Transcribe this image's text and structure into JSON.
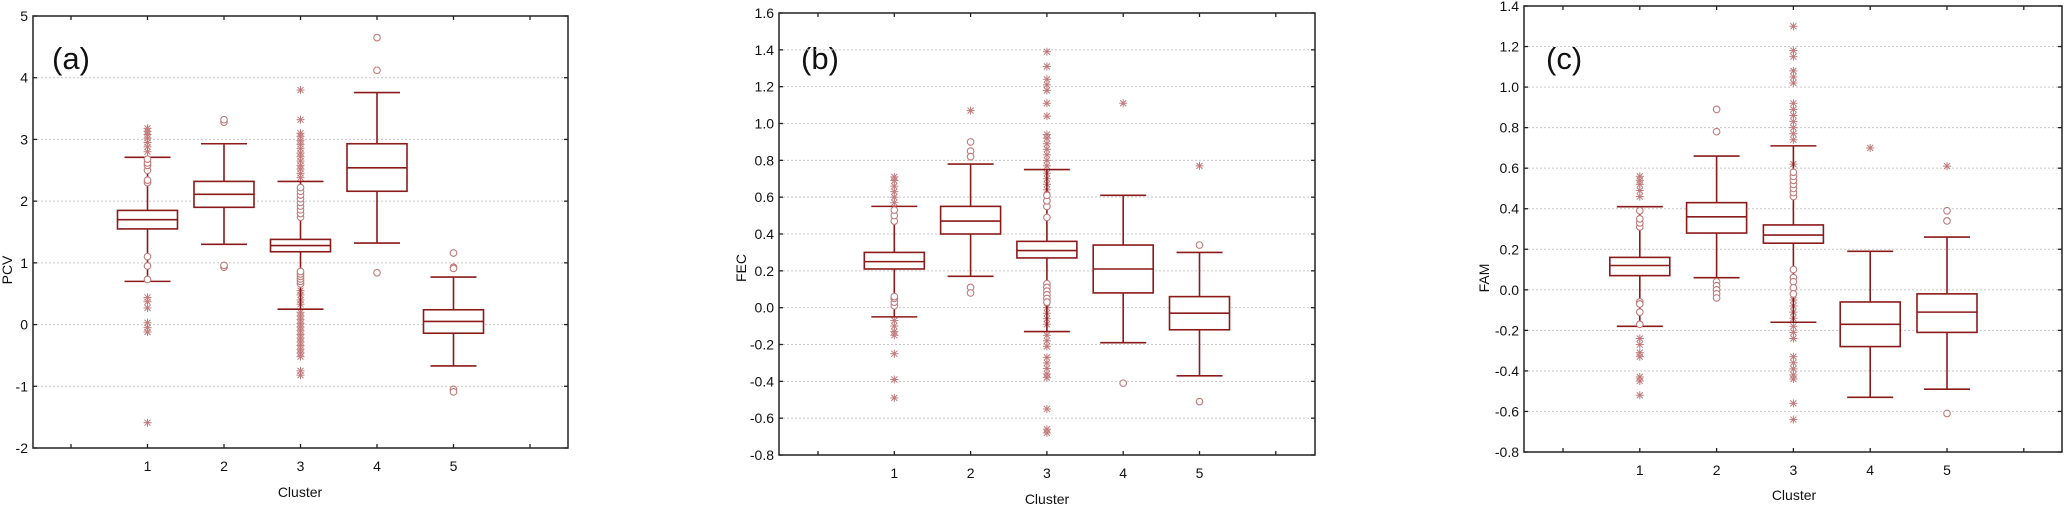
{
  "colors": {
    "box": "#8b1a1a",
    "outlier": "#c07a7a",
    "grid": "#c8c8c8",
    "axis": "#222222"
  },
  "chart_data": [
    {
      "type": "box",
      "panel_label": "(a)",
      "xlabel": "Cluster",
      "ylabel": "PCV",
      "categories": [
        "1",
        "2",
        "3",
        "4",
        "5"
      ],
      "ylim": [
        -2,
        5
      ],
      "yticks": [
        "-2",
        "-1",
        "0",
        "1",
        "2",
        "3",
        "4",
        "5"
      ],
      "grid": true,
      "boxes": [
        {
          "cluster": "1",
          "whisker_low": 0.7,
          "q1": 1.55,
          "median": 1.7,
          "q3": 1.85,
          "whisker_high": 2.71,
          "outliers": [
            2.3,
            2.34,
            2.5,
            2.58,
            2.62,
            2.68,
            1.1,
            0.95,
            0.73
          ],
          "extremes": [
            2.8,
            2.88,
            2.95,
            3.02,
            3.08,
            3.13,
            3.18,
            0.44,
            0.37,
            0.27,
            0.03,
            -0.05,
            -0.12,
            -1.59
          ]
        },
        {
          "cluster": "2",
          "whisker_low": 1.3,
          "q1": 1.9,
          "median": 2.11,
          "q3": 2.32,
          "whisker_high": 2.93,
          "outliers": [
            3.28,
            3.32,
            0.93,
            0.96
          ],
          "extremes": []
        },
        {
          "cluster": "3",
          "whisker_low": 0.25,
          "q1": 1.18,
          "median": 1.28,
          "q3": 1.38,
          "whisker_high": 2.32,
          "outliers": [
            1.74,
            1.8,
            1.86,
            1.92,
            1.98,
            2.04,
            2.1,
            2.16,
            2.22,
            0.66,
            0.7,
            0.74,
            0.78,
            0.82,
            0.86
          ],
          "extremes": [
            2.38,
            2.45,
            2.52,
            2.58,
            2.65,
            2.72,
            2.78,
            2.85,
            2.92,
            2.98,
            3.05,
            3.1,
            3.32,
            3.8,
            0.55,
            0.48,
            0.4,
            0.33,
            0.2,
            0.14,
            0.08,
            0.02,
            -0.04,
            -0.1,
            -0.16,
            -0.22,
            -0.28,
            -0.34,
            -0.4,
            -0.46,
            -0.52,
            -0.75,
            -0.82
          ]
        },
        {
          "cluster": "4",
          "whisker_low": 1.32,
          "q1": 2.16,
          "median": 2.54,
          "q3": 2.93,
          "whisker_high": 3.76,
          "outliers": [
            4.65,
            4.12,
            0.84
          ],
          "extremes": []
        },
        {
          "cluster": "5",
          "whisker_low": -0.67,
          "q1": -0.14,
          "median": 0.05,
          "q3": 0.24,
          "whisker_high": 0.77,
          "outliers": [
            1.16,
            0.93,
            0.91,
            -1.05,
            -1.09
          ],
          "extremes": []
        }
      ]
    },
    {
      "type": "box",
      "panel_label": "(b)",
      "xlabel": "Cluster",
      "ylabel": "FEC",
      "categories": [
        "1",
        "2",
        "3",
        "4",
        "5"
      ],
      "ylim": [
        -0.8,
        1.6
      ],
      "yticks": [
        "-0.8",
        "-0.6",
        "-0.4",
        "-0.2",
        "0.0",
        "0.2",
        "0.4",
        "0.6",
        "0.8",
        "1.0",
        "1.2",
        "1.4",
        "1.6"
      ],
      "grid": true,
      "boxes": [
        {
          "cluster": "1",
          "whisker_low": -0.05,
          "q1": 0.21,
          "median": 0.25,
          "q3": 0.3,
          "whisker_high": 0.55,
          "outliers": [
            0.47,
            0.5,
            0.53,
            0.01,
            0.03,
            0.05,
            0.06
          ],
          "extremes": [
            0.57,
            0.6,
            0.63,
            0.66,
            0.69,
            0.71,
            -0.07,
            -0.1,
            -0.13,
            -0.15,
            -0.25,
            -0.39,
            -0.49
          ]
        },
        {
          "cluster": "2",
          "whisker_low": 0.17,
          "q1": 0.4,
          "median": 0.47,
          "q3": 0.55,
          "whisker_high": 0.78,
          "outliers": [
            0.9,
            0.85,
            0.82,
            0.11,
            0.08
          ],
          "extremes": [
            1.07
          ]
        },
        {
          "cluster": "3",
          "whisker_low": -0.13,
          "q1": 0.27,
          "median": 0.31,
          "q3": 0.36,
          "whisker_high": 0.75,
          "outliers": [
            0.49,
            0.55,
            0.58,
            0.61,
            0.13,
            0.11,
            0.09,
            0.07,
            0.05,
            0.03
          ],
          "extremes": [
            0.64,
            0.67,
            0.7,
            0.73,
            0.77,
            0.8,
            0.83,
            0.86,
            0.89,
            0.92,
            0.94,
            1.04,
            1.11,
            1.18,
            1.21,
            1.24,
            1.31,
            1.39,
            0.0,
            -0.03,
            -0.06,
            -0.09,
            -0.15,
            -0.18,
            -0.21,
            -0.27,
            -0.3,
            -0.33,
            -0.36,
            -0.38,
            -0.55,
            -0.66,
            -0.68
          ]
        },
        {
          "cluster": "4",
          "whisker_low": -0.19,
          "q1": 0.08,
          "median": 0.21,
          "q3": 0.34,
          "whisker_high": 0.61,
          "outliers": [
            -0.41
          ],
          "extremes": [
            1.11
          ]
        },
        {
          "cluster": "5",
          "whisker_low": -0.37,
          "q1": -0.12,
          "median": -0.03,
          "q3": 0.06,
          "whisker_high": 0.3,
          "outliers": [
            0.34,
            -0.51
          ],
          "extremes": [
            0.77
          ]
        }
      ]
    },
    {
      "type": "box",
      "panel_label": "(c)",
      "xlabel": "Cluster",
      "ylabel": "FAM",
      "categories": [
        "1",
        "2",
        "3",
        "4",
        "5"
      ],
      "ylim": [
        -0.8,
        1.4
      ],
      "yticks": [
        "-0.8",
        "-0.6",
        "-0.4",
        "-0.2",
        "0.0",
        "0.2",
        "0.4",
        "0.6",
        "0.8",
        "1.0",
        "1.2",
        "1.4"
      ],
      "grid": true,
      "boxes": [
        {
          "cluster": "1",
          "whisker_low": -0.18,
          "q1": 0.07,
          "median": 0.12,
          "q3": 0.16,
          "whisker_high": 0.41,
          "outliers": [
            0.31,
            0.33,
            0.35,
            0.39,
            -0.06,
            -0.07,
            -0.11,
            -0.17
          ],
          "extremes": [
            0.46,
            0.49,
            0.52,
            0.54,
            0.56,
            -0.24,
            -0.27,
            -0.31,
            -0.33,
            -0.43,
            -0.45,
            -0.52
          ]
        },
        {
          "cluster": "2",
          "whisker_low": 0.06,
          "q1": 0.28,
          "median": 0.36,
          "q3": 0.43,
          "whisker_high": 0.66,
          "outliers": [
            0.89,
            0.78,
            0.04,
            0.02,
            0.0,
            -0.02,
            -0.04
          ],
          "extremes": []
        },
        {
          "cluster": "3",
          "whisker_low": -0.16,
          "q1": 0.23,
          "median": 0.27,
          "q3": 0.32,
          "whisker_high": 0.71,
          "outliers": [
            0.46,
            0.48,
            0.5,
            0.52,
            0.54,
            0.56,
            0.58,
            0.1,
            0.06,
            0.04,
            0.01,
            -0.02
          ],
          "extremes": [
            0.62,
            0.74,
            0.77,
            0.8,
            0.83,
            0.86,
            0.89,
            0.92,
            1.02,
            1.05,
            1.08,
            1.15,
            1.18,
            1.3,
            -0.05,
            -0.08,
            -0.11,
            -0.14,
            -0.18,
            -0.21,
            -0.24,
            -0.33,
            -0.36,
            -0.39,
            -0.42,
            -0.44,
            -0.56,
            -0.64
          ]
        },
        {
          "cluster": "4",
          "whisker_low": -0.53,
          "q1": -0.28,
          "median": -0.17,
          "q3": -0.06,
          "whisker_high": 0.19,
          "outliers": [],
          "extremes": [
            0.7
          ]
        },
        {
          "cluster": "5",
          "whisker_low": -0.49,
          "q1": -0.21,
          "median": -0.11,
          "q3": -0.02,
          "whisker_high": 0.26,
          "outliers": [
            0.39,
            0.34,
            -0.61
          ],
          "extremes": [
            0.61
          ]
        }
      ]
    }
  ]
}
